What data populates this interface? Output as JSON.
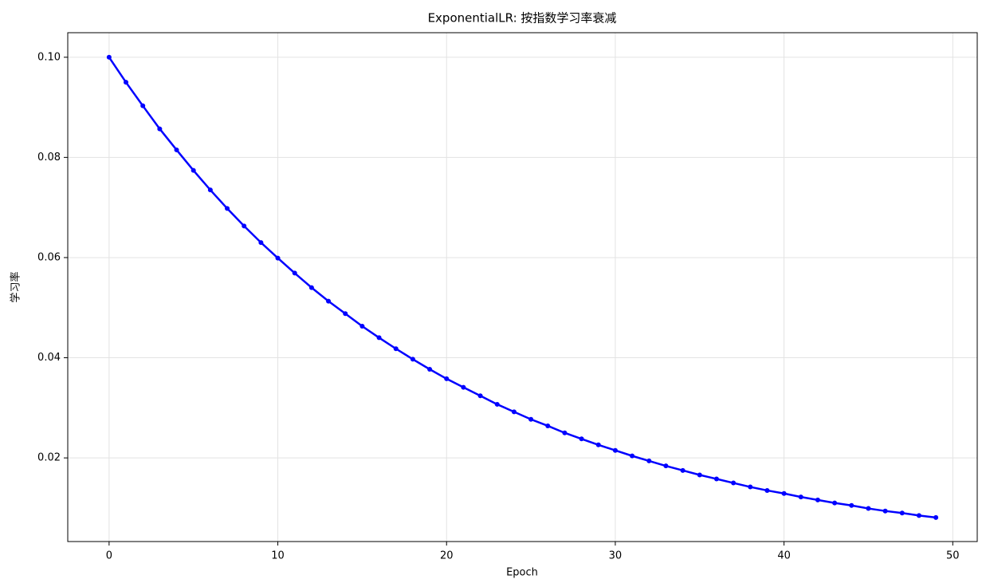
{
  "chart_data": {
    "type": "line",
    "title": "ExponentialLR: 按指数学习率衰减",
    "xlabel": "Epoch",
    "ylabel": "学习率",
    "x": [
      0,
      1,
      2,
      3,
      4,
      5,
      6,
      7,
      8,
      9,
      10,
      11,
      12,
      13,
      14,
      15,
      16,
      17,
      18,
      19,
      20,
      21,
      22,
      23,
      24,
      25,
      26,
      27,
      28,
      29,
      30,
      31,
      32,
      33,
      34,
      35,
      36,
      37,
      38,
      39,
      40,
      41,
      42,
      43,
      44,
      45,
      46,
      47,
      48,
      49
    ],
    "series": [
      {
        "color": "#0000ff",
        "values": [
          0.1,
          0.095,
          0.0903,
          0.0857,
          0.0815,
          0.0774,
          0.0735,
          0.0698,
          0.0663,
          0.063,
          0.0599,
          0.0569,
          0.054,
          0.0513,
          0.0488,
          0.0463,
          0.044,
          0.0418,
          0.0397,
          0.0377,
          0.0358,
          0.0341,
          0.0324,
          0.0307,
          0.0292,
          0.0277,
          0.0264,
          0.025,
          0.0238,
          0.0226,
          0.0215,
          0.0204,
          0.0194,
          0.0184,
          0.0175,
          0.0166,
          0.0158,
          0.015,
          0.0142,
          0.0135,
          0.0129,
          0.0122,
          0.0116,
          0.011,
          0.0105,
          0.0099,
          0.0094,
          0.009,
          0.0085,
          0.0081
        ]
      }
    ],
    "xlim": [
      -2.45,
      51.45
    ],
    "xticks": [
      0,
      10,
      20,
      30,
      40,
      50
    ],
    "ylim": [
      0.0033,
      0.1049
    ],
    "yticks": [
      0.02,
      0.04,
      0.06,
      0.08,
      {
        "value": 0.1,
        "label": "0.10"
      }
    ],
    "grid": true
  }
}
